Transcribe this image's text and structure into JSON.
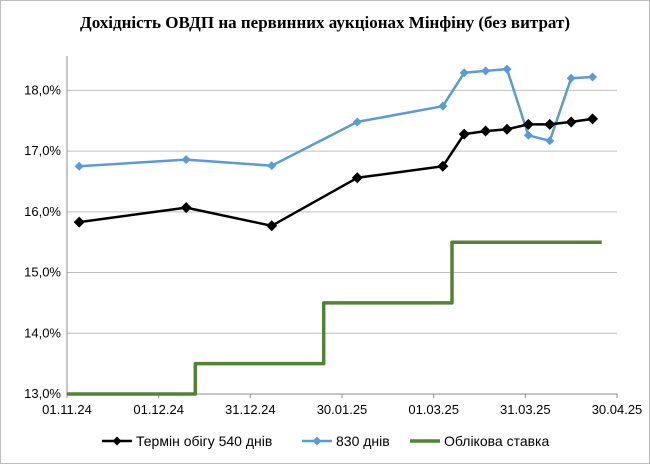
{
  "chart_data": {
    "type": "line",
    "title": "Дохідність ОВДП на первинних аукціонах Мінфіну (без витрат)",
    "xlabel": "",
    "ylabel": "",
    "ylim": [
      13.0,
      18.5
    ],
    "y_ticks": [
      "13,0%",
      "14,0%",
      "15,0%",
      "16,0%",
      "17,0%",
      "18,0%"
    ],
    "y_tick_values": [
      13,
      14,
      15,
      16,
      17,
      18
    ],
    "x_ticks": [
      "01.11.24",
      "01.12.24",
      "31.12.24",
      "30.01.25",
      "01.03.25",
      "31.03.25",
      "30.04.25"
    ],
    "grid": true,
    "legend_position": "bottom",
    "series": [
      {
        "name": "Термін обігу 540 днів",
        "color": "#000000",
        "marker": "diamond",
        "points": [
          [
            "2024-11-05",
            15.83
          ],
          [
            "2024-12-10",
            16.07
          ],
          [
            "2025-01-07",
            15.77
          ],
          [
            "2025-02-04",
            16.56
          ],
          [
            "2025-03-04",
            16.75
          ],
          [
            "2025-03-11",
            17.28
          ],
          [
            "2025-03-18",
            17.33
          ],
          [
            "2025-03-25",
            17.36
          ],
          [
            "2025-04-01",
            17.44
          ],
          [
            "2025-04-08",
            17.44
          ],
          [
            "2025-04-15",
            17.48
          ],
          [
            "2025-04-22",
            17.53
          ]
        ]
      },
      {
        "name": "830 днів",
        "color": "#5b9bd5",
        "marker": "diamond",
        "points": [
          [
            "2024-11-05",
            16.75
          ],
          [
            "2024-12-10",
            16.86
          ],
          [
            "2025-01-07",
            16.76
          ],
          [
            "2025-02-04",
            17.48
          ],
          [
            "2025-03-04",
            17.74
          ],
          [
            "2025-03-11",
            18.29
          ],
          [
            "2025-03-18",
            18.32
          ],
          [
            "2025-03-25",
            18.35
          ],
          [
            "2025-04-01",
            17.26
          ],
          [
            "2025-04-08",
            17.17
          ],
          [
            "2025-04-15",
            18.2
          ],
          [
            "2025-04-22",
            18.22
          ]
        ]
      },
      {
        "name": "Облікова ставка",
        "color": "#548235",
        "marker": "none",
        "step": true,
        "points": [
          [
            "2024-11-01",
            13.0
          ],
          [
            "2024-12-13",
            13.0
          ],
          [
            "2024-12-13",
            13.5
          ],
          [
            "2025-01-24",
            13.5
          ],
          [
            "2025-01-24",
            14.5
          ],
          [
            "2025-03-07",
            14.5
          ],
          [
            "2025-03-07",
            15.5
          ],
          [
            "2025-04-25",
            15.5
          ]
        ]
      }
    ]
  }
}
